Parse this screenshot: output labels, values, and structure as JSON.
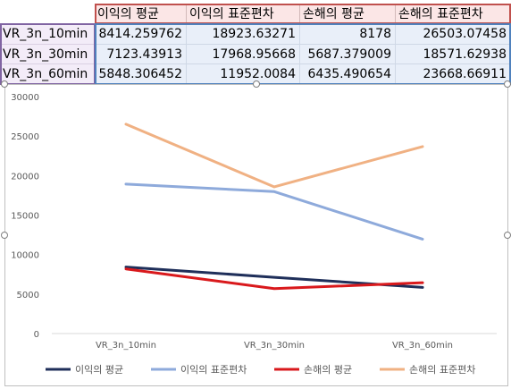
{
  "sheet": {
    "headers": [
      "이익의 평균",
      "이익의 표준편차",
      "손해의 평균",
      "손해의 표준편차"
    ],
    "rows": [
      {
        "label": "VR_3n_10min",
        "values": [
          "8414.259762",
          "18923.63271",
          "8178",
          "26503.07458"
        ]
      },
      {
        "label": "VR_3n_30min",
        "values": [
          "7123.43913",
          "17968.95668",
          "5687.379009",
          "18571.62938"
        ]
      },
      {
        "label": "VR_3n_60min",
        "values": [
          "5848.306452",
          "11952.0084",
          "6435.490654",
          "23668.66911"
        ]
      }
    ]
  },
  "colors": {
    "header_fill": "#fbe6e6",
    "label_fill": "#f3ecf8",
    "value_fill": "#e9eff9",
    "header_outline": "#c0504d",
    "label_outline": "#8064a2",
    "value_outline": "#4f81bd"
  },
  "chart_data": {
    "type": "line",
    "categories": [
      "VR_3n_10min",
      "VR_3n_30min",
      "VR_3n_60min"
    ],
    "ylim": [
      0,
      30000
    ],
    "yticks": [
      0,
      5000,
      10000,
      15000,
      20000,
      25000,
      30000
    ],
    "legend_position": "bottom",
    "grid": false,
    "series": [
      {
        "name": "이익의 평균",
        "color": "#1f2f5a",
        "values": [
          8414.259762,
          7123.43913,
          5848.306452
        ]
      },
      {
        "name": "이익의 표준편차",
        "color": "#8eaadb",
        "values": [
          18923.63271,
          17968.95668,
          11952.0084
        ]
      },
      {
        "name": "손해의 평균",
        "color": "#d9191c",
        "values": [
          8178,
          5687.379009,
          6435.490654
        ]
      },
      {
        "name": "손해의 표준편차",
        "color": "#f0b183",
        "values": [
          26503.07458,
          18571.62938,
          23668.66911
        ]
      }
    ]
  }
}
